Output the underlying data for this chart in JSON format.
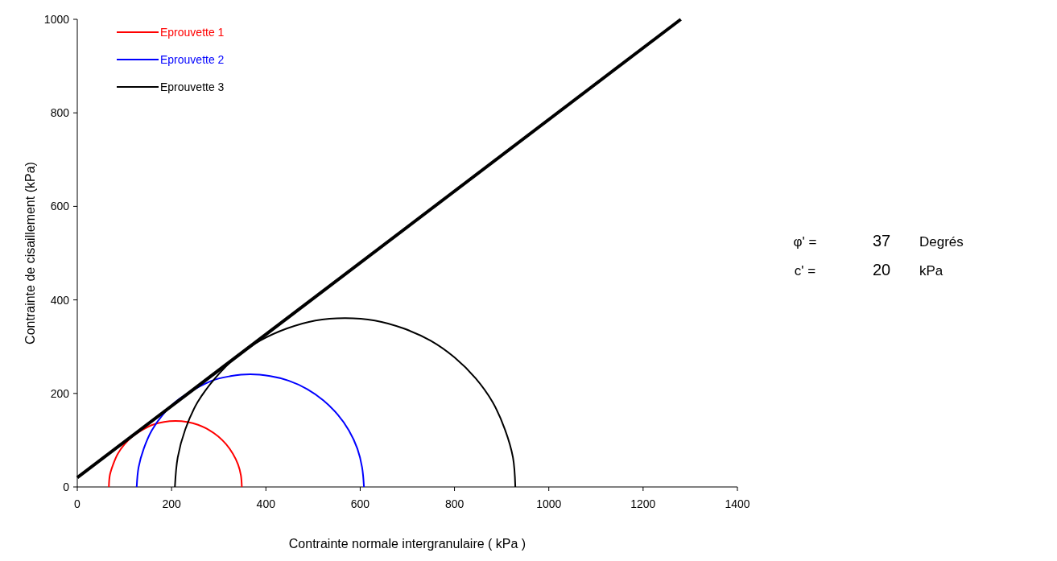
{
  "chart_data": {
    "type": "line",
    "xlabel": "Contrainte normale intergranulaire ( kPa )",
    "ylabel": "Contrainte de cisaillement (kPa)",
    "xlim": [
      0,
      1400
    ],
    "xticks": [
      0,
      200,
      400,
      600,
      800,
      1000,
      1200,
      1400
    ],
    "ylim": [
      0,
      1000
    ],
    "yticks": [
      0,
      200,
      400,
      600,
      800,
      1000
    ],
    "grid": false,
    "legend": "top left",
    "marker": "none",
    "line_style": "solid",
    "series": [
      {
        "name": "Eprouvette 1",
        "color": "#ff0000",
        "x": [
          67,
          69,
          76,
          86,
          100,
          117,
          138,
          160,
          184,
          208,
          233,
          256,
          279,
          299,
          316,
          330,
          341,
          347,
          349
        ],
        "values": [
          0,
          25,
          48,
          71,
          91,
          108,
          122,
          133,
          139,
          141,
          139,
          133,
          122,
          108,
          91,
          71,
          48,
          25,
          0
        ]
      },
      {
        "name": "Eprouvette 2",
        "color": "#0000ff",
        "x": [
          126,
          130,
          141,
          158,
          182,
          212,
          247,
          285,
          325,
          367,
          409,
          449,
          488,
          522,
          552,
          576,
          594,
          604,
          608
        ],
        "values": [
          0,
          42,
          82,
          121,
          155,
          185,
          null,
          227,
          237,
          241,
          237,
          227,
          209,
          185,
          155,
          121,
          82,
          42,
          0
        ]
      },
      {
        "name": "Eprouvette 3",
        "color": "#000000",
        "x": [
          207,
          213,
          229,
          255,
          292,
          336,
          388,
          445,
          505,
          568,
          631,
          692,
          749,
          800,
          845,
          881,
          907,
          924,
          929
        ],
        "values": [
          0,
          63,
          123,
          181,
          232,
          277,
          313,
          339,
          356,
          361,
          356,
          339,
          313,
          277,
          232,
          181,
          123,
          63,
          0
        ]
      },
      {
        "color": "#000000",
        "x": [
          0,
          1280
        ],
        "values": [
          20,
          1000
        ]
      }
    ],
    "annotations": [
      "φ' =",
      "37",
      "Degrés",
      "c' =",
      "20",
      "kPa"
    ]
  }
}
